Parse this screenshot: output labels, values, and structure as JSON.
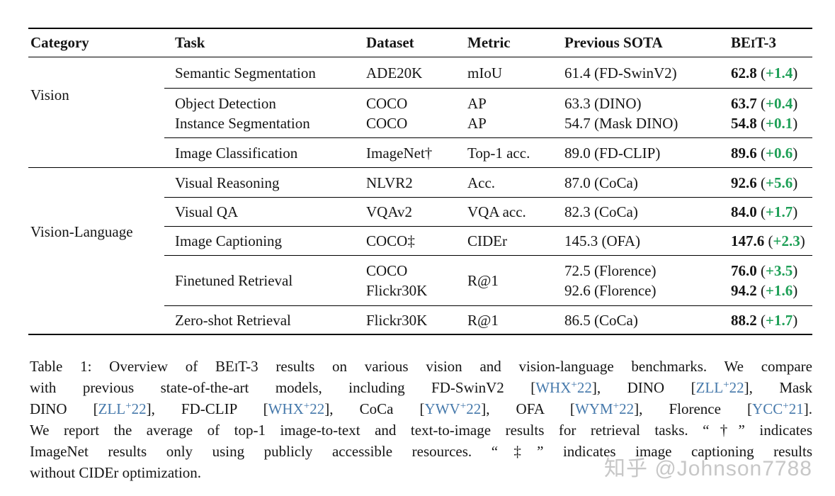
{
  "colors": {
    "positive_green": "#1d9f56",
    "citation_blue": "#4679ab",
    "rule_black": "#000000",
    "watermark_gray": "#c7c7c7",
    "text_black": "#151515",
    "background": "#ffffff"
  },
  "punct": {
    "open": " (",
    "close": ")"
  },
  "table": {
    "header": {
      "category": "Category",
      "task": "Task",
      "dataset": "Dataset",
      "metric": "Metric",
      "previous_sota": "Previous SOTA",
      "beit3_prefix": "BE",
      "beit3_smallcap": "I",
      "beit3_suffix": "T-3"
    },
    "category_labels": {
      "vision": "Vision",
      "vision_language": "Vision-Language"
    },
    "rows": [
      {
        "category": "Vision",
        "task": "Semantic Segmentation",
        "dataset": "ADE20K",
        "metric": "mIoU",
        "previous_sota": "61.4 (FD-SwinV2)",
        "beit3_score": "62.8",
        "beit3_delta": "+1.4"
      },
      {
        "category": "Vision",
        "task": "Object Detection",
        "dataset": "COCO",
        "metric": "AP",
        "previous_sota": "63.3 (DINO)",
        "beit3_score": "63.7",
        "beit3_delta": "+0.4"
      },
      {
        "category": "Vision",
        "task": "Instance Segmentation",
        "dataset": "COCO",
        "metric": "AP",
        "previous_sota": "54.7 (Mask DINO)",
        "beit3_score": "54.8",
        "beit3_delta": "+0.1"
      },
      {
        "category": "Vision",
        "task": "Image Classification",
        "dataset": "ImageNet†",
        "metric": "Top-1 acc.",
        "previous_sota": "89.0 (FD-CLIP)",
        "beit3_score": "89.6",
        "beit3_delta": "+0.6"
      },
      {
        "category": "Vision-Language",
        "task": "Visual Reasoning",
        "dataset": "NLVR2",
        "metric": "Acc.",
        "previous_sota": "87.0 (CoCa)",
        "beit3_score": "92.6",
        "beit3_delta": "+5.6"
      },
      {
        "category": "Vision-Language",
        "task": "Visual QA",
        "dataset": "VQAv2",
        "metric": "VQA acc.",
        "previous_sota": "82.3 (CoCa)",
        "beit3_score": "84.0",
        "beit3_delta": "+1.7"
      },
      {
        "category": "Vision-Language",
        "task": "Image Captioning",
        "dataset": "COCO‡",
        "metric": "CIDEr",
        "previous_sota": "145.3 (OFA)",
        "beit3_score": "147.6",
        "beit3_delta": "+2.3"
      },
      {
        "category": "Vision-Language",
        "task": "Finetuned Retrieval",
        "dataset": "COCO",
        "dataset_2": "Flickr30K",
        "metric": "R@1",
        "previous_sota": "72.5 (Florence)",
        "previous_sota_2": "92.6 (Florence)",
        "beit3_score": "76.0",
        "beit3_delta": "+3.5",
        "beit3_score_2": "94.2",
        "beit3_delta_2": "+1.6"
      },
      {
        "category": "Vision-Language",
        "task": "Zero-shot Retrieval",
        "dataset": "Flickr30K",
        "metric": "R@1",
        "previous_sota": "86.5 (CoCa)",
        "beit3_score": "88.2",
        "beit3_delta": "+1.7"
      }
    ]
  },
  "caption": {
    "lines": [
      [
        {
          "t": "Table 1: Overview of BE"
        },
        {
          "t": "I",
          "sc": true
        },
        {
          "t": "T-3 results on various vision and vision-language benchmarks. We compare"
        }
      ],
      [
        {
          "t": "with previous state-of-the-art models, including FD-SwinV2 ["
        },
        {
          "t": "WHX",
          "c": true
        },
        {
          "t": "+",
          "c": true,
          "sup": true
        },
        {
          "t": "22",
          "c": true
        },
        {
          "t": "], DINO ["
        },
        {
          "t": "ZLL",
          "c": true
        },
        {
          "t": "+",
          "c": true,
          "sup": true
        },
        {
          "t": "22",
          "c": true
        },
        {
          "t": "], Mask"
        }
      ],
      [
        {
          "t": "DINO ["
        },
        {
          "t": "ZLL",
          "c": true
        },
        {
          "t": "+",
          "c": true,
          "sup": true
        },
        {
          "t": "22",
          "c": true
        },
        {
          "t": "], FD-CLIP ["
        },
        {
          "t": "WHX",
          "c": true
        },
        {
          "t": "+",
          "c": true,
          "sup": true
        },
        {
          "t": "22",
          "c": true
        },
        {
          "t": "], CoCa ["
        },
        {
          "t": "YWV",
          "c": true
        },
        {
          "t": "+",
          "c": true,
          "sup": true
        },
        {
          "t": "22",
          "c": true
        },
        {
          "t": "], OFA ["
        },
        {
          "t": "WYM",
          "c": true
        },
        {
          "t": "+",
          "c": true,
          "sup": true
        },
        {
          "t": "22",
          "c": true
        },
        {
          "t": "], Florence ["
        },
        {
          "t": "YCC",
          "c": true
        },
        {
          "t": "+",
          "c": true,
          "sup": true
        },
        {
          "t": "21",
          "c": true
        },
        {
          "t": "]."
        }
      ],
      [
        {
          "t": "We report the average of top-1 image-to-text and text-to-image results for retrieval tasks. “†” indicates"
        }
      ],
      [
        {
          "t": "ImageNet results only using publicly accessible resources. “‡” indicates image captioning results"
        }
      ],
      [
        {
          "t": "without CIDEr optimization."
        }
      ]
    ]
  },
  "watermark": {
    "text": "知乎 @Johnson7788"
  }
}
